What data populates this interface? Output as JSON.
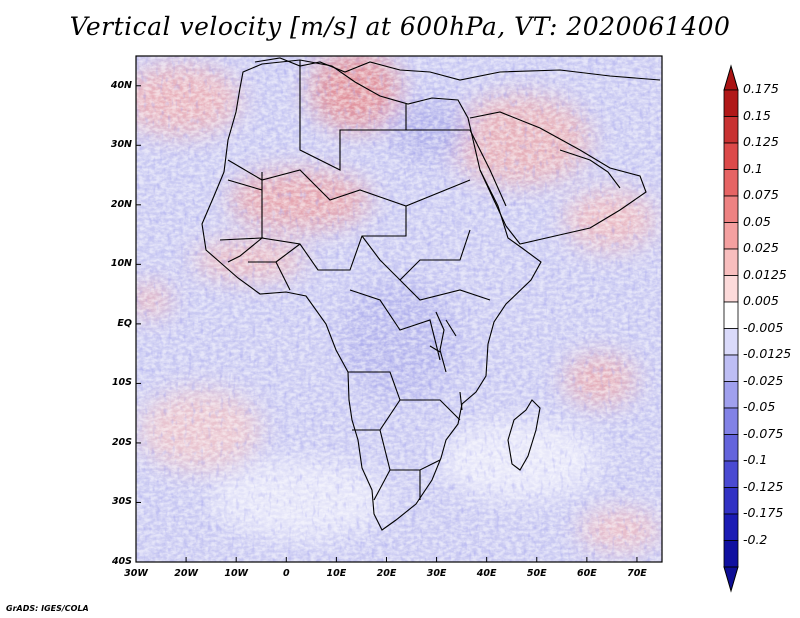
{
  "title": "Vertical velocity [m/s] at 600hPa, VT: 2020061400",
  "credit": "GrADS: IGES/COLA",
  "chart_data": {
    "type": "heatmap",
    "variable": "Vertical velocity",
    "units": "m/s",
    "level": "600hPa",
    "valid_time": "2020061400",
    "region": "Africa",
    "lon_range": [
      -30,
      75
    ],
    "lat_range": [
      -40,
      45
    ],
    "lat_ticks": [
      "40N",
      "30N",
      "20N",
      "10N",
      "EQ",
      "10S",
      "20S",
      "30S",
      "40S"
    ],
    "lon_ticks": [
      "30W",
      "20W",
      "10W",
      "0",
      "10E",
      "20E",
      "30E",
      "40E",
      "50E",
      "60E",
      "70E"
    ],
    "colorbar_labels": [
      "0.175",
      "0.15",
      "0.125",
      "0.1",
      "0.075",
      "0.05",
      "0.025",
      "0.0125",
      "0.005",
      "-0.005",
      "-0.0125",
      "-0.025",
      "-0.05",
      "-0.075",
      "-0.1",
      "-0.125",
      "-0.175",
      "-0.2"
    ],
    "colorbar_colors": [
      "#b01818",
      "#c83232",
      "#dc4a4a",
      "#e66464",
      "#ee8282",
      "#f4a0a0",
      "#f8bebe",
      "#fcdada",
      "#ffffff",
      "#dadafa",
      "#bebef4",
      "#a0a0ee",
      "#8282e6",
      "#6464dc",
      "#4a4ad2",
      "#3232c4",
      "#1c1cb4",
      "#1010a0"
    ],
    "colorbar_under_color": "#0e0e96",
    "colorbar_over_color": "#aa1414"
  }
}
